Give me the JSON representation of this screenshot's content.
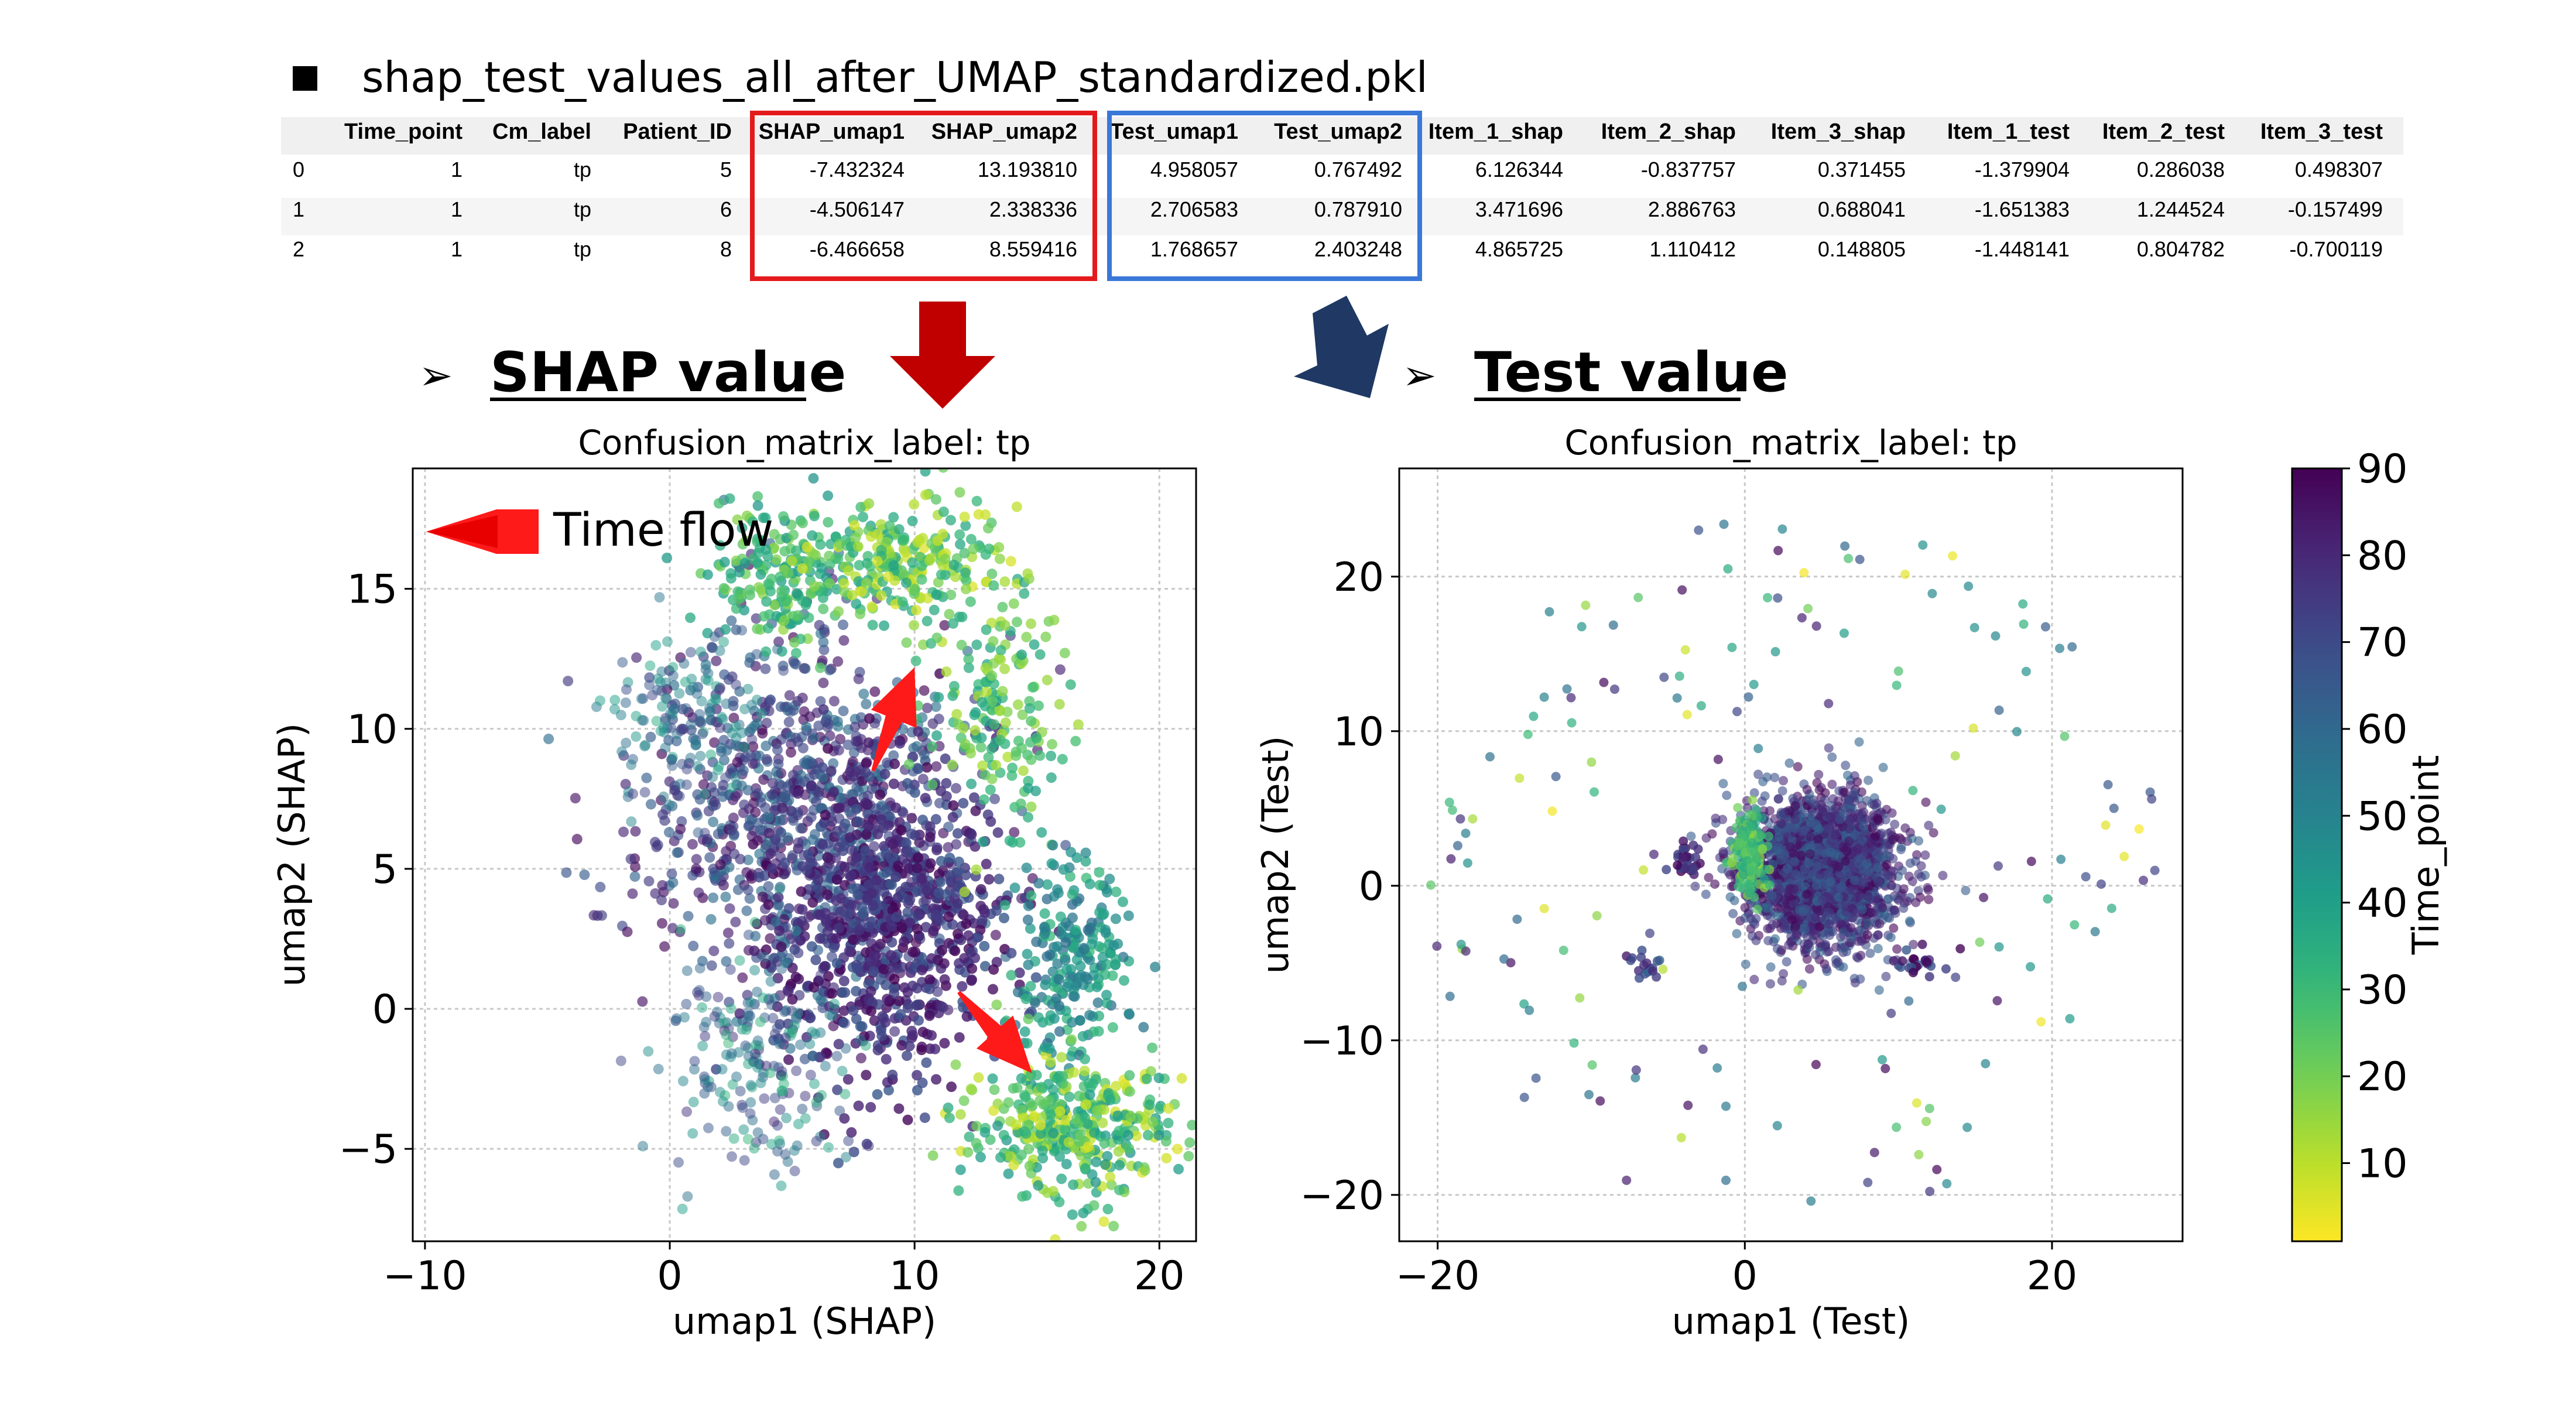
{
  "file_title": "shap_test_values_all_after_UMAP_standardized.pkl",
  "table": {
    "columns": [
      "",
      "Time_point",
      "Cm_label",
      "Patient_ID",
      "SHAP_umap1",
      "SHAP_umap2",
      "Test_umap1",
      "Test_umap2",
      "Item_1_shap",
      "Item_2_shap",
      "Item_3_shap",
      "Item_1_test",
      "Item_2_test",
      "Item_3_test"
    ],
    "rows": [
      [
        "0",
        "1",
        "tp",
        "5",
        "-7.432324",
        "13.193810",
        "4.958057",
        "0.767492",
        "6.126344",
        "-0.837757",
        "0.371455",
        "-1.379904",
        "0.286038",
        "0.498307"
      ],
      [
        "1",
        "1",
        "tp",
        "6",
        "-4.506147",
        "2.338336",
        "2.706583",
        "0.787910",
        "3.471696",
        "2.886763",
        "0.688041",
        "-1.651383",
        "1.244524",
        "-0.157499"
      ],
      [
        "2",
        "1",
        "tp",
        "8",
        "-6.466658",
        "8.559416",
        "1.768657",
        "2.403248",
        "4.865725",
        "1.110412",
        "0.148805",
        "-1.448141",
        "0.804782",
        "-0.700119"
      ]
    ],
    "highlight_colors": {
      "shap": "#e31a1c",
      "test": "#3a78d8"
    }
  },
  "sections": {
    "shap_heading": "SHAP value",
    "test_heading": "Test value",
    "bullet": "➢"
  },
  "annotation": {
    "time_flow": "Time flow",
    "arrow_color": "#ff1a1a"
  },
  "colors": {
    "shap_arrow": "#c00000",
    "test_arrow": "#1f3864"
  },
  "chart_data": [
    {
      "type": "scatter",
      "title": "Confusion_matrix_label: tp",
      "xlabel": "umap1 (SHAP)",
      "ylabel": "umap2 (SHAP)",
      "xlim": [
        -10.5,
        21.5
      ],
      "ylim": [
        -8.3,
        19.3
      ],
      "xticks": [
        -10,
        0,
        10,
        20
      ],
      "xtick_labels": [
        "−10",
        "0",
        "10",
        "20"
      ],
      "yticks": [
        -5,
        0,
        5,
        10,
        15
      ],
      "ytick_labels": [
        "−5",
        "0",
        "5",
        "10",
        "15"
      ],
      "grid": true,
      "color_by": "Time_point",
      "clusters": [
        {
          "cx": 5.5,
          "cy": 7.0,
          "sx": 4.2,
          "sy": 4.0,
          "n": 950,
          "time": [
            55,
            90
          ],
          "alpha": 0.65
        },
        {
          "cx": 9.0,
          "cy": 3.0,
          "sx": 3.0,
          "sy": 3.5,
          "n": 750,
          "time": [
            65,
            90
          ],
          "alpha": 0.8
        },
        {
          "cx": 4.5,
          "cy": 15.5,
          "sx": 1.8,
          "sy": 1.6,
          "n": 180,
          "time": [
            15,
            45
          ],
          "alpha": 0.75
        },
        {
          "cx": 9.5,
          "cy": 15.8,
          "sx": 2.8,
          "sy": 1.4,
          "n": 260,
          "time": [
            5,
            40
          ],
          "alpha": 0.75
        },
        {
          "cx": 13.5,
          "cy": 10.5,
          "sx": 1.5,
          "sy": 2.6,
          "n": 160,
          "time": [
            10,
            40
          ],
          "alpha": 0.75
        },
        {
          "cx": 16.5,
          "cy": 1.5,
          "sx": 1.4,
          "sy": 2.4,
          "n": 230,
          "time": [
            30,
            60
          ],
          "alpha": 0.75
        },
        {
          "cx": 16.5,
          "cy": -4.2,
          "sx": 2.6,
          "sy": 1.6,
          "n": 380,
          "time": [
            5,
            45
          ],
          "alpha": 0.75
        },
        {
          "cx": 0.8,
          "cy": 10.5,
          "sx": 2.2,
          "sy": 1.8,
          "n": 140,
          "time": [
            35,
            75
          ],
          "alpha": 0.5
        },
        {
          "cx": 3.5,
          "cy": -2.0,
          "sx": 2.2,
          "sy": 2.4,
          "n": 200,
          "time": [
            30,
            80
          ],
          "alpha": 0.5
        }
      ],
      "arrows": [
        {
          "from": [
            8.3,
            8.5
          ],
          "to": [
            10.0,
            12.2
          ]
        },
        {
          "from": [
            11.8,
            0.6
          ],
          "to": [
            14.8,
            -2.3
          ]
        }
      ]
    },
    {
      "type": "scatter",
      "title": "Confusion_matrix_label: tp",
      "xlabel": "umap1 (Test)",
      "ylabel": "umap2 (Test)",
      "xlim": [
        -22.5,
        28.5
      ],
      "ylim": [
        -23,
        27
      ],
      "xticks": [
        -20,
        0,
        20
      ],
      "xtick_labels": [
        "−20",
        "0",
        "20"
      ],
      "yticks": [
        -20,
        -10,
        0,
        10,
        20
      ],
      "ytick_labels": [
        "−20",
        "−10",
        "0",
        "10",
        "20"
      ],
      "grid": true,
      "color_by": "Time_point",
      "clusters": [
        {
          "cx": 5.0,
          "cy": 1.0,
          "sx": 3.1,
          "sy": 3.0,
          "n": 2200,
          "time": [
            60,
            90
          ],
          "alpha": 0.6
        },
        {
          "cx": 0.3,
          "cy": 2.2,
          "sx": 0.7,
          "sy": 1.6,
          "n": 160,
          "time": [
            15,
            40
          ],
          "alpha": 0.7
        },
        {
          "cx": -3.8,
          "cy": 1.8,
          "sx": 0.5,
          "sy": 0.6,
          "n": 30,
          "time": [
            70,
            90
          ],
          "alpha": 0.8
        },
        {
          "cx": 11.5,
          "cy": -5.0,
          "sx": 1.0,
          "sy": 0.6,
          "n": 25,
          "time": [
            65,
            90
          ],
          "alpha": 0.8
        },
        {
          "cx": -6.5,
          "cy": -5.0,
          "sx": 0.6,
          "sy": 0.6,
          "n": 18,
          "time": [
            60,
            90
          ],
          "alpha": 0.8
        }
      ],
      "scatter_ring": {
        "r_min": 7,
        "r_max": 24,
        "n": 160,
        "time": [
          1,
          90
        ]
      }
    }
  ],
  "colorbar": {
    "label": "Time_point",
    "min": 1,
    "max": 90,
    "ticks": [
      10,
      20,
      30,
      40,
      50,
      60,
      70,
      80,
      90
    ],
    "colormap": "viridis_r"
  }
}
